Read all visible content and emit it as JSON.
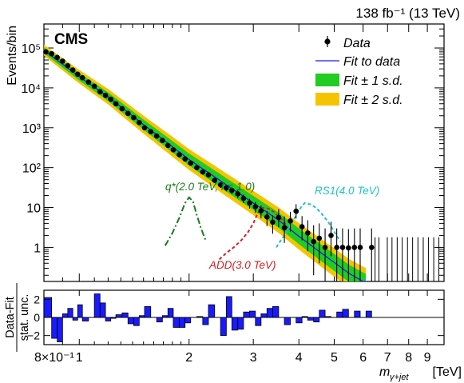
{
  "chart_data": [
    {
      "type": "scatter",
      "lumi_label": "138 fb⁻¹ (13 TeV)",
      "experiment_label": "CMS",
      "ylabel": "Events/bin",
      "yscale": "log",
      "ylim": [
        0.14,
        400000
      ],
      "xscale": "log",
      "xlim": [
        0.8,
        10.0
      ],
      "ytick_labels": [
        "1",
        "10",
        "10²",
        "10³",
        "10⁴",
        "10⁵"
      ],
      "ytick_values": [
        1,
        10,
        100,
        1000,
        10000,
        100000
      ],
      "legend_position": "top-right",
      "legend": [
        {
          "label": "Data",
          "kind": "marker",
          "color": "#000000"
        },
        {
          "label": "Fit to data",
          "kind": "line",
          "color": "#1a1aff"
        },
        {
          "label": "Fit ± 1 s.d.",
          "kind": "box",
          "color": "#22cc22"
        },
        {
          "label": "Fit ± 2 s.d.",
          "kind": "box",
          "color": "#f5c400"
        }
      ],
      "data": {
        "x": [
          0.81,
          0.84,
          0.87,
          0.9,
          0.93,
          0.96,
          0.99,
          1.02,
          1.06,
          1.1,
          1.14,
          1.18,
          1.22,
          1.26,
          1.31,
          1.36,
          1.41,
          1.46,
          1.51,
          1.57,
          1.63,
          1.69,
          1.75,
          1.81,
          1.88,
          1.95,
          2.02,
          2.1,
          2.18,
          2.26,
          2.35,
          2.44,
          2.53,
          2.62,
          2.72,
          2.82,
          2.93,
          3.04,
          3.15,
          3.27,
          3.39,
          3.52,
          3.65,
          3.79,
          3.93,
          4.08,
          4.23,
          4.39,
          4.55,
          4.72,
          4.9,
          5.08,
          5.27,
          5.47,
          5.68,
          5.89,
          6.33
        ],
        "y": [
          80000,
          72000,
          58000,
          47000,
          36000,
          28000,
          22000,
          18000,
          14000,
          11000,
          8000,
          6500,
          5200,
          4000,
          3000,
          2300,
          1800,
          1350,
          1000,
          800,
          620,
          480,
          360,
          280,
          210,
          165,
          130,
          100,
          78,
          66,
          48,
          37,
          31,
          27,
          22,
          17,
          13,
          10.5,
          8.3,
          5.8,
          4.3,
          5.6,
          3.1,
          4.6,
          8.1,
          3.3,
          2.3,
          1.4,
          1.7,
          1.0,
          2.0,
          1.0,
          1.0,
          0.97,
          1.0,
          1.0,
          1.0
        ],
        "yerr_low": [
          300,
          280,
          250,
          220,
          190,
          170,
          150,
          135,
          120,
          105,
          90,
          80,
          72,
          63,
          55,
          48,
          42,
          37,
          32,
          28,
          25,
          22,
          19,
          17,
          14.5,
          12.8,
          11.4,
          10,
          8.8,
          8.1,
          6.9,
          6.1,
          5.6,
          5.2,
          4.7,
          4.1,
          3.6,
          3.2,
          2.9,
          2.4,
          2.1,
          2.4,
          1.8,
          2.1,
          2.8,
          1.8,
          1.5,
          1.2,
          1.3,
          1.0,
          1.4,
          1.0,
          1.0,
          0.97,
          1.0,
          1.0,
          1.0
        ],
        "yerr_high": [
          300,
          280,
          250,
          220,
          190,
          170,
          150,
          135,
          120,
          105,
          90,
          80,
          72,
          63,
          55,
          48,
          42,
          37,
          32,
          28,
          25,
          22,
          19,
          17,
          14.5,
          12.8,
          11.4,
          10,
          8.8,
          8.1,
          6.9,
          6.1,
          5.6,
          5.2,
          4.7,
          4.1,
          3.6,
          3.2,
          2.9,
          2.4,
          2.1,
          3.5,
          2.9,
          3.2,
          4.0,
          2.8,
          2.5,
          2.2,
          2.3,
          2.0,
          2.4,
          2.0,
          2.0,
          1.9,
          2.0,
          2.0,
          2.0
        ]
      },
      "fit": {
        "x": [
          0.8,
          1.0,
          1.2,
          1.5,
          2.0,
          2.5,
          3.0,
          3.5,
          4.0,
          4.5,
          5.0,
          5.5,
          6.0,
          6.1
        ],
        "y": [
          88000,
          19000,
          6000,
          1200,
          160,
          40,
          13,
          5,
          1.9,
          0.85,
          0.42,
          0.22,
          0.14,
          0.13
        ]
      },
      "fit_band_1sd_relative": 0.08,
      "fit_band_2sd_relative": 0.16,
      "empty_bins_x": [
        6.47,
        6.63,
        6.99,
        7.2,
        7.44,
        7.68,
        7.94,
        8.2,
        8.48,
        8.77,
        9.06,
        9.37,
        9.68
      ],
      "empty_bins_yerr_high": 1.8,
      "signals": [
        {
          "label": "q*(2.0 TeV, f = 1.0)",
          "color": "#1a7a1a",
          "dash": "8,3,2,3",
          "x": [
            1.72,
            1.8,
            1.88,
            1.95,
            2.0,
            2.05,
            2.1,
            2.16,
            2.22
          ],
          "y": [
            1.1,
            2.3,
            5.5,
            13,
            18,
            14,
            6.5,
            2.9,
            1.5
          ]
        },
        {
          "label": "ADD(3.0 TeV)",
          "color": "#d42020",
          "dash": "4,3",
          "x": [
            2.42,
            2.52,
            2.65,
            2.78,
            2.9,
            3.0,
            3.08,
            3.15,
            3.22,
            3.34,
            3.46,
            3.6,
            3.7
          ],
          "y": [
            0.5,
            0.7,
            1.0,
            1.5,
            2.4,
            4.0,
            7.0,
            9.5,
            10.0,
            9.0,
            7.0,
            5.0,
            3.5
          ]
        },
        {
          "label": "RS1(4.0 TeV)",
          "color": "#22c0c8",
          "dash": "4,3",
          "x": [
            3.47,
            3.55,
            3.65,
            3.75,
            3.85,
            3.95,
            4.05,
            4.15,
            4.3,
            4.45,
            4.62,
            4.8,
            5.0,
            5.2
          ],
          "y": [
            1.0,
            1.4,
            2.0,
            3.0,
            4.5,
            7.0,
            10.0,
            13.0,
            12.0,
            10.0,
            7.0,
            4.5,
            2.5,
            1.4
          ]
        }
      ]
    },
    {
      "type": "bar",
      "ylabel_top": "Data-Fit",
      "ylabel_bottom": "stat. unc.",
      "xlabel": "m",
      "xlabel_subscript": "γ+jet",
      "xlabel_unit": "[TeV]",
      "xscale": "log",
      "xlim": [
        0.8,
        10.0
      ],
      "ylim": [
        -3,
        3
      ],
      "ytick_labels": [
        "2",
        "0",
        "−2"
      ],
      "ytick_values": [
        2,
        0,
        -2
      ],
      "xtick_labels": [
        "8×10⁻¹",
        "1",
        "2",
        "3",
        "4",
        "5",
        "6",
        "7",
        "8",
        "9"
      ],
      "xtick_values": [
        0.8,
        1,
        2,
        3,
        4,
        5,
        6,
        7,
        8,
        9
      ],
      "bar_color": "#1a1aff",
      "bin_edges": [
        0.8,
        0.84,
        0.87,
        0.9,
        0.93,
        0.96,
        0.99,
        1.02,
        1.06,
        1.1,
        1.14,
        1.18,
        1.22,
        1.26,
        1.31,
        1.36,
        1.41,
        1.46,
        1.51,
        1.57,
        1.63,
        1.69,
        1.75,
        1.81,
        1.88,
        1.95,
        2.02,
        2.1,
        2.18,
        2.26,
        2.35,
        2.44,
        2.53,
        2.62,
        2.72,
        2.82,
        2.93,
        3.04,
        3.15,
        3.27,
        3.39,
        3.52,
        3.65,
        3.79,
        3.93,
        4.08,
        4.23,
        4.39,
        4.55,
        4.72,
        4.9,
        5.08,
        5.27,
        5.47,
        5.68,
        5.89,
        6.11,
        6.33,
        6.55
      ],
      "values": [
        2.2,
        -2.3,
        -2.7,
        0.4,
        1.0,
        -0.3,
        1.4,
        -0.4,
        0.0,
        2.6,
        1.6,
        -0.4,
        -0.1,
        0.3,
        0.5,
        -0.7,
        -0.9,
        0.2,
        1.2,
        0.0,
        -0.5,
        0.2,
        1.0,
        -1.1,
        -1.1,
        -0.6,
        0.0,
        0.1,
        -0.8,
        1.4,
        0.0,
        -2.0,
        2.3,
        -1.4,
        -1.3,
        0.6,
        0.7,
        -0.9,
        0.4,
        1.0,
        1.2,
        0.0,
        -0.8,
        0.0,
        -0.6,
        0.1,
        -0.3,
        -0.5,
        0.8,
        0.1,
        0.0,
        0.6,
        0.9,
        0.0,
        0.7,
        0.0,
        0.7,
        0.0
      ]
    }
  ]
}
